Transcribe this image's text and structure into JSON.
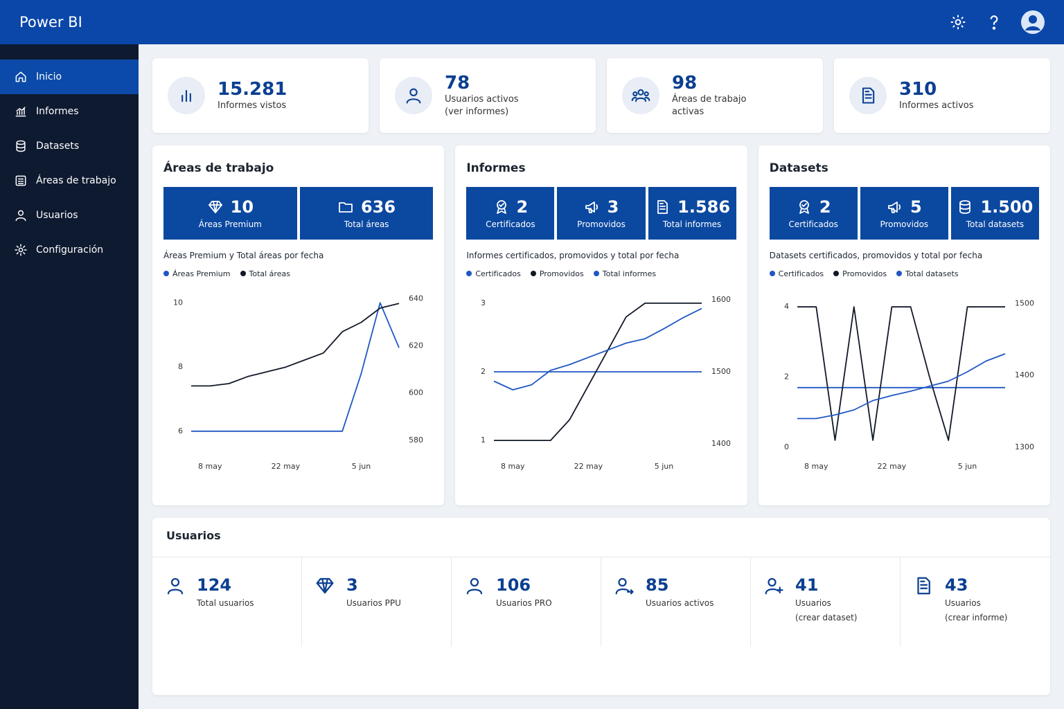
{
  "header": {
    "title": "Power BI"
  },
  "nav": [
    "Inicio",
    "Informes",
    "Datasets",
    "Áreas de trabajo",
    "Usuarios",
    "Configuración"
  ],
  "kpis": [
    {
      "value": "15.281",
      "label": [
        "Informes vistos"
      ]
    },
    {
      "value": "78",
      "label": [
        "Usuarios activos",
        "(ver informes)"
      ]
    },
    {
      "value": "98",
      "label": [
        "Áreas de trabajo",
        "activas"
      ]
    },
    {
      "value": "310",
      "label": [
        "Informes activos"
      ]
    }
  ],
  "panels": [
    {
      "title": "Áreas de trabajo",
      "tiles": [
        {
          "value": "10",
          "label": "Áreas Premium"
        },
        {
          "value": "636",
          "label": "Total áreas"
        }
      ],
      "chart": {
        "type": "line",
        "title": "Áreas Premium y Total áreas por fecha",
        "categories": [
          null,
          "8 may",
          null,
          null,
          null,
          "22 may",
          null,
          null,
          null,
          "5 jun",
          null,
          null
        ],
        "series": [
          {
            "name": "Áreas Premium",
            "color": "#1f57c3",
            "axis": "y",
            "values": [
              6,
              6,
              6,
              6,
              6,
              6,
              6,
              6,
              6,
              7.8,
              10,
              8.6
            ]
          },
          {
            "name": "Total áreas",
            "color": "#111827",
            "axis": "y2",
            "values": [
              603,
              603,
              604,
              607,
              609,
              611,
              614,
              617,
              626,
              630,
              636,
              638
            ]
          }
        ],
        "ylim": [
          5.5,
          10.2
        ],
        "yticks": [
          6,
          8,
          10
        ],
        "y2lim": [
          577,
          641
        ],
        "y2ticks": [
          580,
          600,
          620,
          640
        ]
      }
    },
    {
      "title": "Informes",
      "tiles": [
        {
          "value": "2",
          "label": "Certificados"
        },
        {
          "value": "3",
          "label": "Promovidos"
        },
        {
          "value": "1.586",
          "label": "Total informes"
        }
      ],
      "chart": {
        "type": "line",
        "title": "Informes certificados, promovidos y total por fecha",
        "categories": [
          null,
          "8 may",
          null,
          null,
          null,
          "22 may",
          null,
          null,
          null,
          "5 jun",
          null,
          null
        ],
        "series": [
          {
            "name": "Certificados",
            "color": "#1f57c3",
            "axis": "y",
            "values": [
              2,
              2,
              2,
              2,
              2,
              2,
              2,
              2,
              2,
              2,
              2,
              2
            ]
          },
          {
            "name": "Promovidos",
            "color": "#111827",
            "axis": "y",
            "values": [
              1,
              1,
              1,
              1,
              1.3,
              1.8,
              2.3,
              2.8,
              3,
              3,
              3,
              3
            ]
          },
          {
            "name": "Total informes",
            "color": "#1f57c3",
            "axis": "y2",
            "values": [
              1487,
              1475,
              1482,
              1502,
              1510,
              1520,
              1530,
              1540,
              1546,
              1560,
              1575,
              1588
            ]
          }
        ],
        "ylim": [
          0.9,
          3.1
        ],
        "yticks": [
          1,
          2,
          3
        ],
        "y2lim": [
          1395,
          1605
        ],
        "y2ticks": [
          1400,
          1500,
          1600
        ]
      }
    },
    {
      "title": "Datasets",
      "tiles": [
        {
          "value": "2",
          "label": "Certificados"
        },
        {
          "value": "5",
          "label": "Promovidos"
        },
        {
          "value": "1.500",
          "label": "Total datasets"
        }
      ],
      "chart": {
        "type": "line",
        "title": "Datasets certificados, promovidos y total por fecha",
        "categories": [
          null,
          "8 may",
          null,
          null,
          null,
          "22 may",
          null,
          null,
          null,
          "5 jun",
          null,
          null
        ],
        "series": [
          {
            "name": "Certificados",
            "color": "#1f57c3",
            "axis": "y",
            "values": [
              1.7,
              1.7,
              1.7,
              1.7,
              1.7,
              1.7,
              1.7,
              1.7,
              1.7,
              1.7,
              1.7,
              1.7
            ]
          },
          {
            "name": "Promovidos",
            "color": "#111827",
            "axis": "y",
            "values": [
              4,
              4,
              0.2,
              4,
              0.2,
              4,
              4,
              2,
              0.2,
              4,
              4,
              4
            ]
          },
          {
            "name": "Total datasets",
            "color": "#1f57c3",
            "axis": "y2",
            "values": [
              1340,
              1340,
              1345,
              1352,
              1365,
              1372,
              1378,
              1385,
              1392,
              1405,
              1420,
              1430
            ]
          }
        ],
        "ylim": [
          0,
          4.3
        ],
        "yticks": [
          0,
          2,
          4
        ],
        "y2lim": [
          1300,
          1510
        ],
        "y2ticks": [
          1300,
          1400,
          1500
        ]
      }
    }
  ],
  "users": {
    "title": "Usuarios",
    "items": [
      {
        "value": "124",
        "label": [
          "Total usuarios"
        ]
      },
      {
        "value": "3",
        "label": [
          "Usuarios PPU"
        ]
      },
      {
        "value": "106",
        "label": [
          "Usuarios PRO"
        ]
      },
      {
        "value": "85",
        "label": [
          "Usuarios activos"
        ]
      },
      {
        "value": "41",
        "label": [
          "Usuarios",
          "(crear dataset)"
        ]
      },
      {
        "value": "43",
        "label": [
          "Usuarios",
          "(crear informe)"
        ]
      }
    ]
  }
}
